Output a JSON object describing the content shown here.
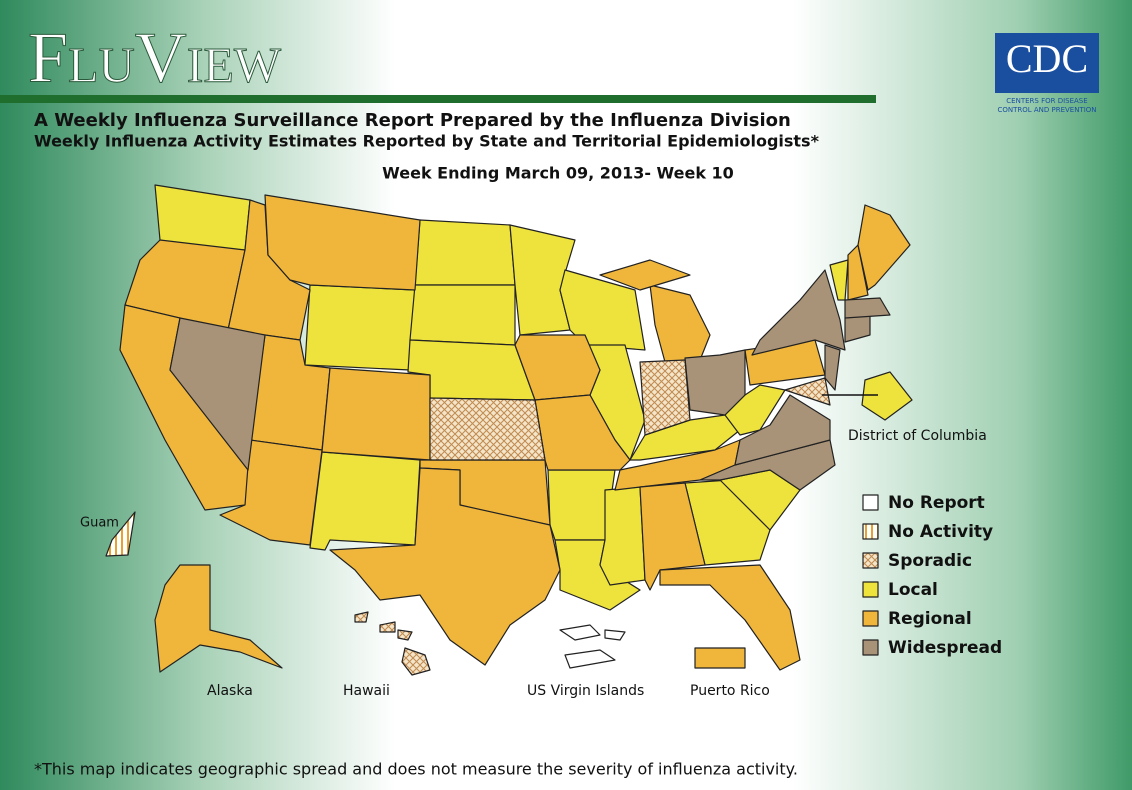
{
  "header": {
    "title": "FluView",
    "subtitle": "A Weekly Influenza Surveillance Report Prepared by the Influenza Division",
    "subtitle2": "Weekly Influenza Activity Estimates Reported by State and Territorial Epidemiologists*",
    "week": "Week Ending March 09, 2013- Week 10"
  },
  "logo": {
    "name": "CDC",
    "line1": "Centers for Disease",
    "line2": "Control and Prevention"
  },
  "legend": [
    "No Report",
    "No Activity",
    "Sporadic",
    "Local",
    "Regional",
    "Widespread"
  ],
  "labels": {
    "dc": "District of Columbia",
    "guam": "Guam",
    "alaska": "Alaska",
    "hawaii": "Hawaii",
    "usvi": "US Virgin Islands",
    "pr": "Puerto Rico"
  },
  "footnote": "*This map indicates geographic spread and does not measure the severity of influenza activity."
}
